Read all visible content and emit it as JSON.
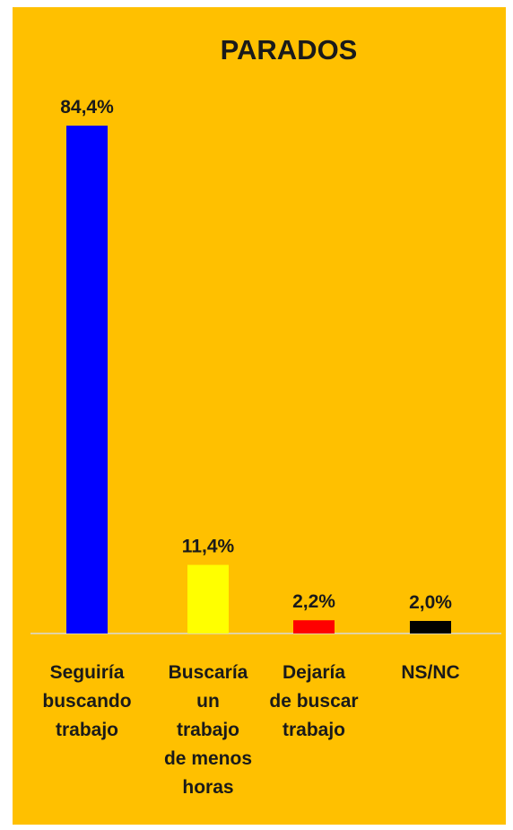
{
  "chart_data": {
    "type": "bar",
    "title": "PARADOS",
    "categories": [
      "Seguiría buscando trabajo",
      "Buscaría un trabajo de menos horas",
      "Dejaría de buscar trabajo",
      "NS/NC"
    ],
    "category_lines": [
      [
        "Seguiría",
        "buscando",
        "trabajo"
      ],
      [
        "Buscaría",
        "un",
        "trabajo",
        "de menos",
        "horas"
      ],
      [
        "Dejaría",
        "de buscar",
        "trabajo"
      ],
      [
        "NS/NC"
      ]
    ],
    "values": [
      84.4,
      11.4,
      2.2,
      2.0
    ],
    "value_labels": [
      "84,4%",
      "11,4%",
      "2,2%",
      "2,0%"
    ],
    "colors": [
      "#0000FF",
      "#FFFF00",
      "#FF0000",
      "#000000"
    ],
    "background": "#FFC000",
    "xlabel": "",
    "ylabel": "",
    "ylim": [
      0,
      84.4
    ],
    "grid": false,
    "legend": "none"
  }
}
